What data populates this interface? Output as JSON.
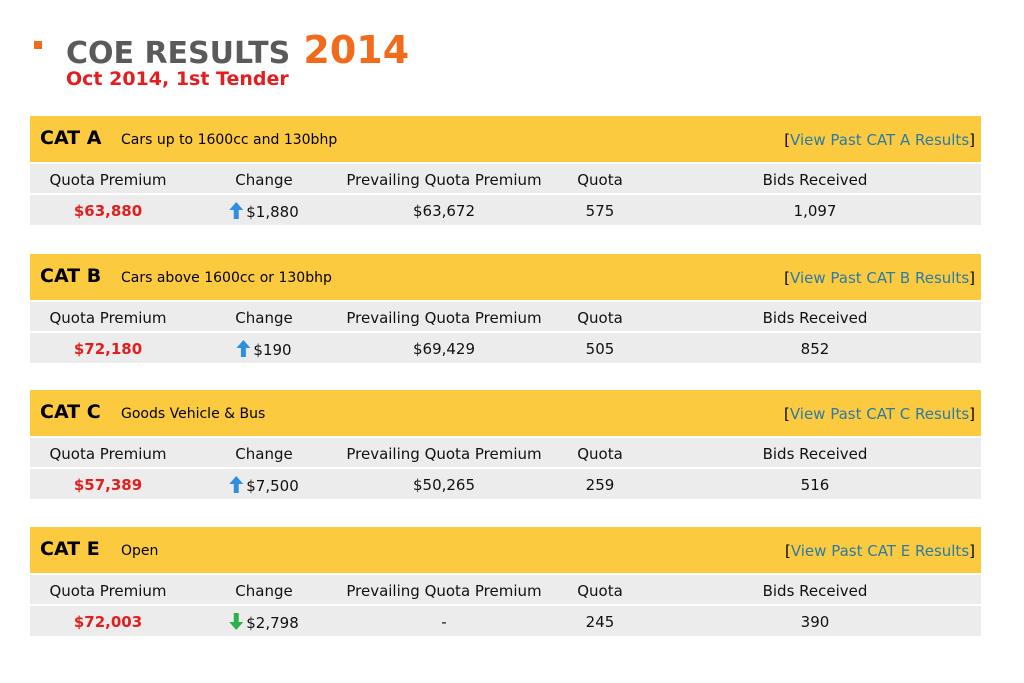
{
  "header": {
    "title": "COE RESULTS",
    "year": "2014",
    "subtitle": "Oct 2014, 1st Tender"
  },
  "columns": [
    "Quota Premium",
    "Change",
    "Prevailing Quota Premium",
    "Quota",
    "Bids Received"
  ],
  "colors": {
    "accent": "#f26a1b",
    "header_bar": "#fcca3e",
    "row_bg": "#ececec",
    "premium_text": "#e41e1e",
    "link": "#2a7ba8",
    "arrow_up": "#2f8fde",
    "arrow_down": "#2bb24a"
  },
  "categories": [
    {
      "code": "CAT A",
      "description": "Cars up to 1600cc and 130bhp",
      "link_label": "View Past CAT A Results",
      "quota_premium": "$63,880",
      "change_direction": "up",
      "change_icon": "arrow-up-icon",
      "change": "$1,880",
      "prevailing_quota_premium": "$63,672",
      "quota": "575",
      "bids_received": "1,097"
    },
    {
      "code": "CAT B",
      "description": "Cars above 1600cc or 130bhp",
      "link_label": "View Past CAT B Results",
      "quota_premium": "$72,180",
      "change_direction": "up",
      "change_icon": "arrow-up-icon",
      "change": "$190",
      "prevailing_quota_premium": "$69,429",
      "quota": "505",
      "bids_received": "852"
    },
    {
      "code": "CAT C",
      "description": "Goods Vehicle & Bus",
      "link_label": "View Past CAT C Results",
      "quota_premium": "$57,389",
      "change_direction": "up",
      "change_icon": "arrow-up-icon",
      "change": "$7,500",
      "prevailing_quota_premium": "$50,265",
      "quota": "259",
      "bids_received": "516"
    },
    {
      "code": "CAT E",
      "description": "Open",
      "link_label": "View Past CAT E Results",
      "quota_premium": "$72,003",
      "change_direction": "down",
      "change_icon": "arrow-down-icon",
      "change": "$2,798",
      "prevailing_quota_premium": "-",
      "quota": "245",
      "bids_received": "390"
    }
  ]
}
